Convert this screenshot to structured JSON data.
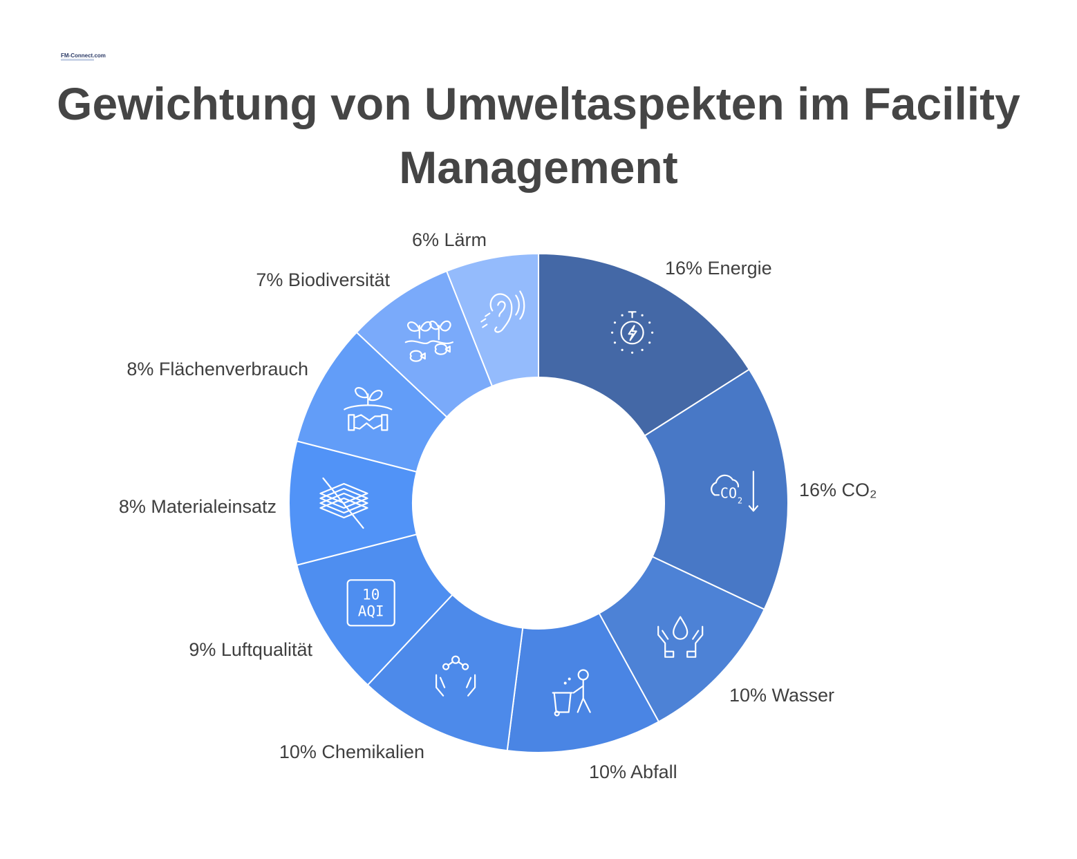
{
  "logo": {
    "text": "FM-Connect.com"
  },
  "title": "Gewichtung von Umweltaspekten im Facility Management",
  "chart_data": {
    "type": "pie",
    "donut": true,
    "title": "Gewichtung von Umweltaspekten im Facility Management",
    "unit": "%",
    "categories": [
      "Energie",
      "CO₂",
      "Wasser",
      "Abfall",
      "Chemikalien",
      "Luftqualität",
      "Materialeinsatz",
      "Flächenverbrauch",
      "Biodiversität",
      "Lärm"
    ],
    "values": [
      16,
      16,
      10,
      10,
      10,
      9,
      8,
      8,
      7,
      6
    ],
    "labels": [
      "16% Energie",
      "16% CO₂",
      "10% Wasser",
      "10% Abfall",
      "10% Chemikalien",
      "9% Luftqualität",
      "8% Materialeinsatz",
      "8% Flächenverbrauch",
      "7% Biodiversität",
      "6% Lärm"
    ],
    "colors": [
      "#4468a6",
      "#4878c6",
      "#4d82d6",
      "#4a85e4",
      "#4d8aea",
      "#4e8ef0",
      "#5193f7",
      "#629df8",
      "#7aaafa",
      "#94bbfc"
    ],
    "icons": [
      "energy-bolt-icon",
      "co2-down-icon",
      "water-hands-icon",
      "waste-bin-icon",
      "chemical-hands-icon",
      "aqi-icon",
      "material-layers-icon",
      "handshake-plant-icon",
      "plant-fish-icon",
      "ear-icon"
    ],
    "aqi_icon_text": [
      "10",
      "AQI"
    ]
  }
}
